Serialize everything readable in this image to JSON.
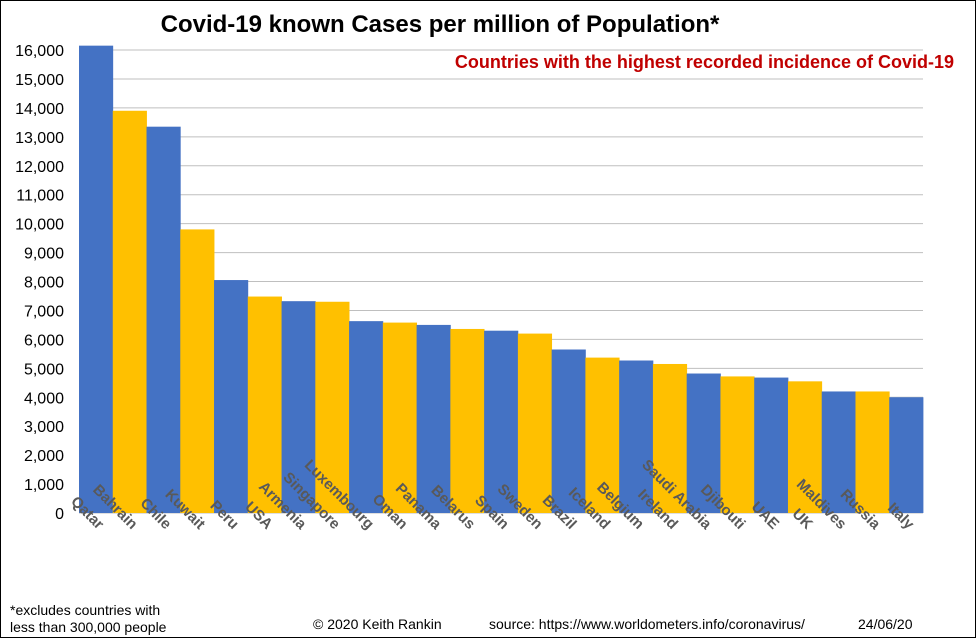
{
  "chart_data": {
    "type": "bar",
    "title": "Covid-19 known Cases per million of Population*",
    "subtitle": "Countries with  the highest recorded incidence of Covid-19",
    "xlabel": "",
    "ylabel": "",
    "ylim": [
      0,
      16000
    ],
    "yticks": [
      0,
      1000,
      2000,
      3000,
      4000,
      5000,
      6000,
      7000,
      8000,
      9000,
      10000,
      11000,
      12000,
      13000,
      14000,
      15000,
      16000
    ],
    "grid": true,
    "categories": [
      "Qatar",
      "Bahrain",
      "Chile",
      "Kuwait",
      "Peru",
      "USA",
      "Armenia",
      "Singapore",
      "Luxembourg",
      "Oman",
      "Panama",
      "Belarus",
      "Spain",
      "Sweden",
      "Brazil",
      "Iceland",
      "Belgium",
      "Ireland",
      "Saudi Arabia",
      "Djibouti",
      "UAE",
      "UK",
      "Maldives",
      "Russia",
      "Italy"
    ],
    "values": [
      16150,
      13900,
      13350,
      9800,
      8050,
      7480,
      7320,
      7300,
      6630,
      6580,
      6500,
      6360,
      6300,
      6200,
      5650,
      5370,
      5270,
      5150,
      4820,
      4720,
      4680,
      4550,
      4200,
      4200,
      4000
    ],
    "colors": [
      "#4472c4",
      "#ffc000",
      "#4472c4",
      "#ffc000",
      "#4472c4",
      "#ffc000",
      "#4472c4",
      "#ffc000",
      "#4472c4",
      "#ffc000",
      "#4472c4",
      "#ffc000",
      "#4472c4",
      "#ffc000",
      "#4472c4",
      "#ffc000",
      "#4472c4",
      "#ffc000",
      "#4472c4",
      "#ffc000",
      "#4472c4",
      "#ffc000",
      "#4472c4",
      "#ffc000",
      "#4472c4"
    ]
  },
  "footer": {
    "note_line1": "*excludes  countries with",
    "note_line2": "less than 300,000  people",
    "credit": "© 2020  Keith Rankin",
    "source": "source: https://www.worldometers.info/coronavirus/",
    "date": "24/06/20"
  }
}
